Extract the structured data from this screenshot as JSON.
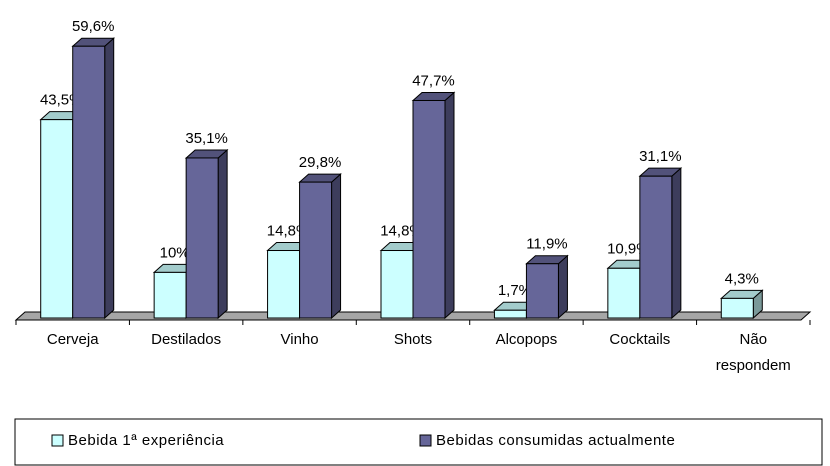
{
  "chart_data": {
    "type": "bar3d",
    "categories": [
      "Cerveja",
      "Destilados",
      "Vinho",
      "Shots",
      "Alcopops",
      "Cocktails",
      "Não respondem"
    ],
    "series": [
      {
        "name": "Bebida 1ª experiência",
        "color": "#ccffff",
        "values": [
          43.5,
          10,
          14.8,
          14.8,
          1.7,
          10.9,
          4.3
        ],
        "value_labels": [
          "43,5%",
          "10%",
          "14,8%",
          "14,8%",
          "1,7%",
          "10,9%",
          "4,3%"
        ]
      },
      {
        "name": "Bebidas consumidas actualmente",
        "color": "#666699",
        "values": [
          59.6,
          35.1,
          29.8,
          47.7,
          11.9,
          31.1,
          null
        ],
        "value_labels": [
          "59,6%",
          "35,1%",
          "29,8%",
          "47,7%",
          "11,9%",
          "31,1%",
          null
        ]
      }
    ],
    "legend": "bottom"
  }
}
